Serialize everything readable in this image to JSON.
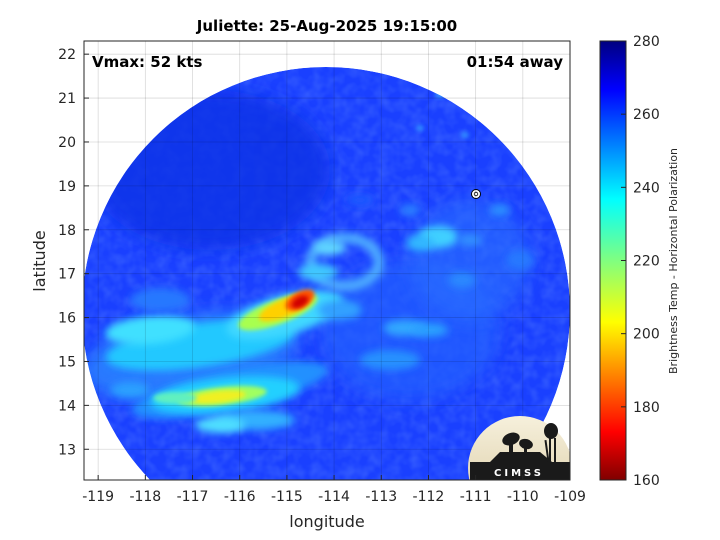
{
  "figure": {
    "title": "Juliette: 25-Aug-2025 19:15:00",
    "vmax_label": "Vmax: 52 kts",
    "time_label": "01:54 away"
  },
  "chart_data": {
    "type": "heatmap",
    "title": "Juliette: 25-Aug-2025 19:15:00",
    "xlabel": "longitude",
    "ylabel": "latitude",
    "xlim": [
      -119.3,
      -109
    ],
    "ylim": [
      12.3,
      22.3
    ],
    "xticks": [
      "-119",
      "-118",
      "-117",
      "-116",
      "-115",
      "-114",
      "-113",
      "-112",
      "-111",
      "-110",
      "-109"
    ],
    "yticks": [
      "13",
      "14",
      "15",
      "16",
      "17",
      "18",
      "19",
      "20",
      "21",
      "22"
    ],
    "grid": true,
    "colorbar": {
      "label": "Brightness Temp - Horizontal Polarization",
      "min": 160,
      "max": 280,
      "ticks": [
        "280",
        "260",
        "240",
        "220",
        "200",
        "180",
        "160"
      ],
      "colormap": "jet"
    },
    "swath": {
      "center": [
        -114.1,
        16.4
      ],
      "radius_deg": 5.5,
      "background_value": 268
    },
    "features": [
      {
        "name": "storm-core",
        "lon": -114.8,
        "lat": 16.3,
        "value": 175
      },
      {
        "name": "inner-band",
        "lon": -115.4,
        "lat": 16.0,
        "value": 215
      },
      {
        "name": "southwest-band",
        "lon": -116.7,
        "lat": 14.1,
        "value": 218
      },
      {
        "name": "southern-band",
        "lon": -115.6,
        "lat": 15.3,
        "value": 238
      },
      {
        "name": "east-cloud",
        "lon": -112.2,
        "lat": 17.7,
        "value": 242
      },
      {
        "name": "eye-ring",
        "lon": -114.0,
        "lat": 17.0,
        "value": 252
      }
    ],
    "storm_marker": {
      "lon": -111.0,
      "lat": 18.8
    },
    "annotations": [
      "Vmax: 52 kts",
      "01:54 away"
    ]
  },
  "logo": {
    "text": "CIMSS"
  }
}
